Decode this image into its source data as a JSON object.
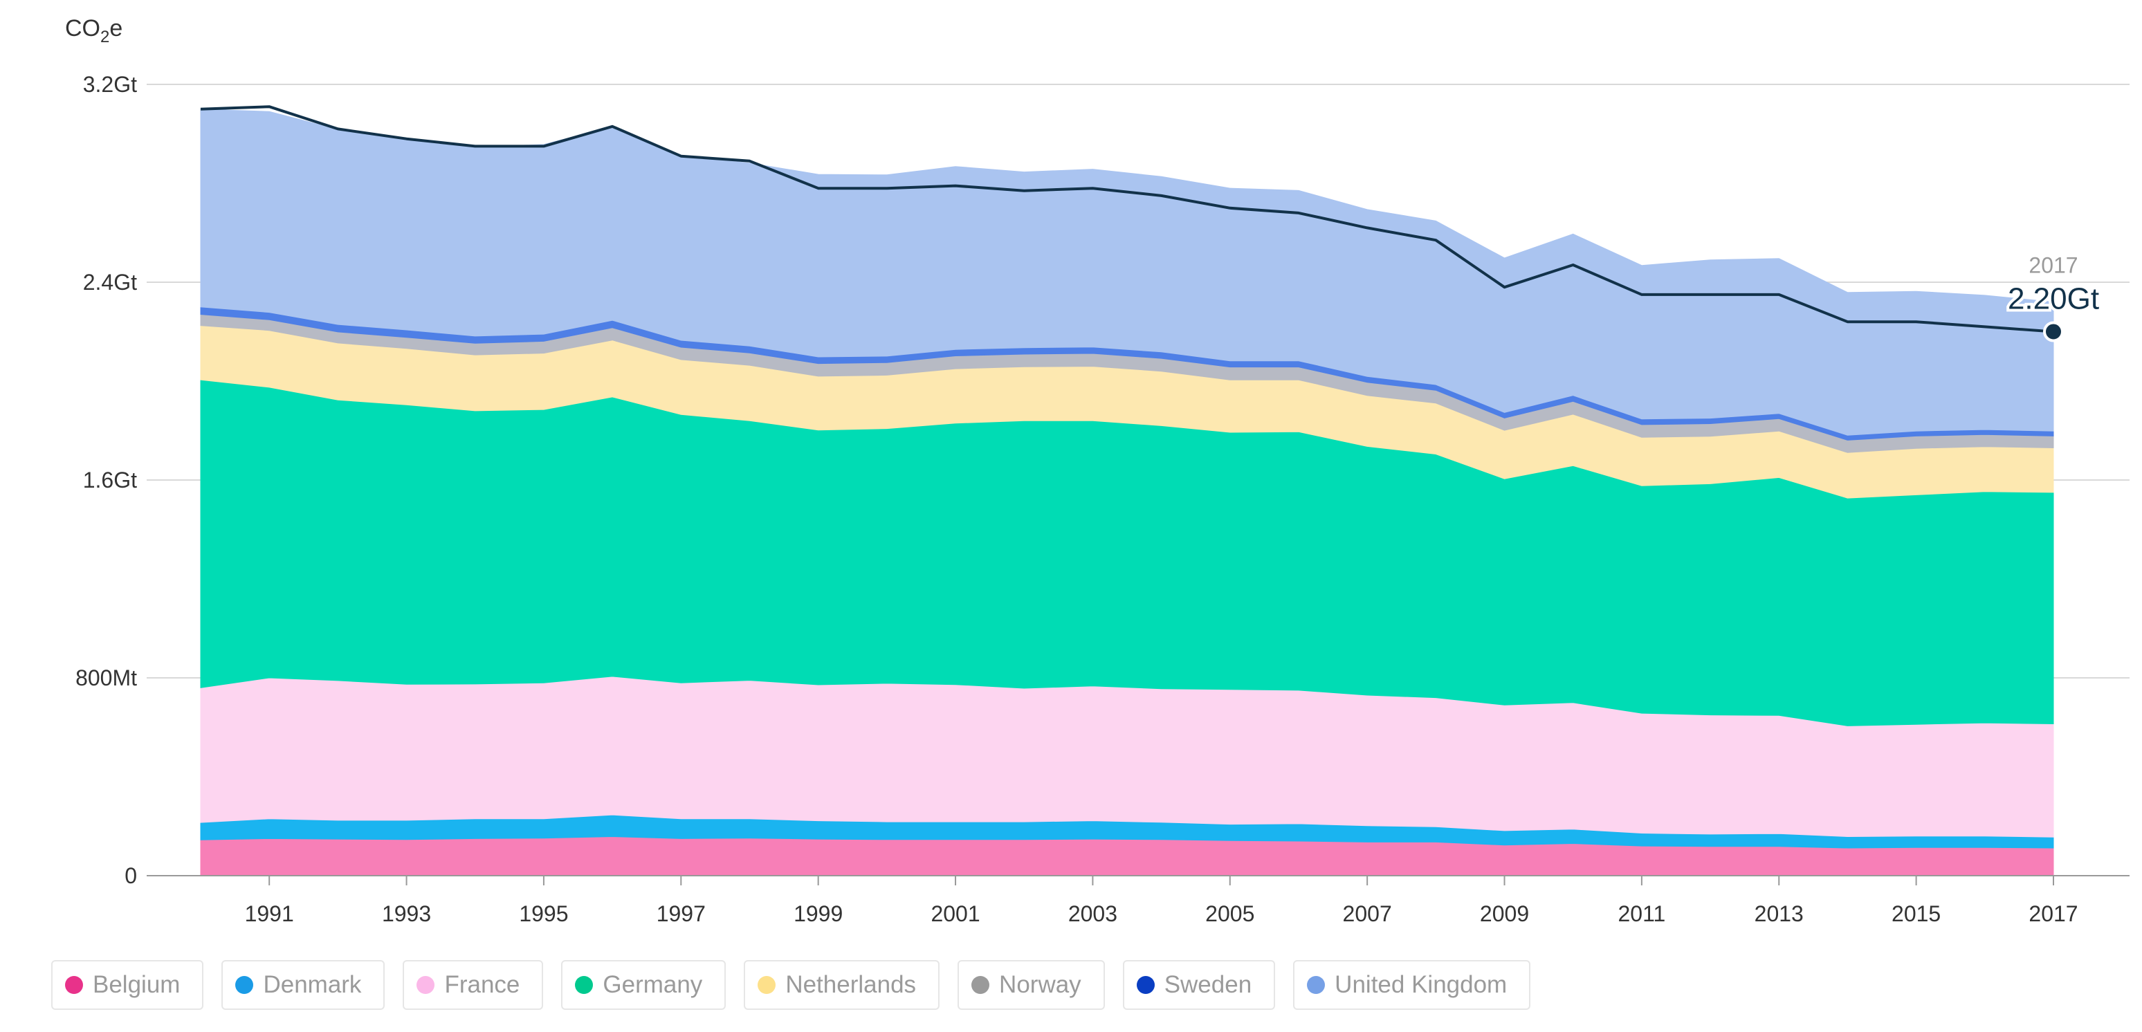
{
  "chart_data": {
    "type": "area",
    "stacked": true,
    "ylabel": "CO₂e",
    "ylabel_parts": {
      "prefix": "CO",
      "subscript": "2",
      "suffix": "e"
    },
    "ylim": [
      0,
      3.2
    ],
    "y_ticks": [
      {
        "value": 0,
        "label": "0"
      },
      {
        "value": 0.8,
        "label": "800Mt"
      },
      {
        "value": 1.6,
        "label": "1.6Gt"
      },
      {
        "value": 2.4,
        "label": "2.4Gt"
      },
      {
        "value": 3.2,
        "label": "3.2Gt"
      }
    ],
    "x": [
      1990,
      1991,
      1992,
      1993,
      1994,
      1995,
      1996,
      1997,
      1998,
      1999,
      2000,
      2001,
      2002,
      2003,
      2004,
      2005,
      2006,
      2007,
      2008,
      2009,
      2010,
      2011,
      2012,
      2013,
      2014,
      2015,
      2016,
      2017
    ],
    "x_ticks": [
      "1991",
      "1993",
      "1995",
      "1997",
      "1999",
      "2001",
      "2003",
      "2005",
      "2007",
      "2009",
      "2011",
      "2013",
      "2015",
      "2017"
    ],
    "x_tick_values": [
      1991,
      1993,
      1995,
      1997,
      1999,
      2001,
      2003,
      2005,
      2007,
      2009,
      2011,
      2013,
      2015,
      2017
    ],
    "series": [
      {
        "name": "Belgium",
        "color": "#f77fb7",
        "values": [
          0.145,
          0.15,
          0.148,
          0.146,
          0.15,
          0.152,
          0.158,
          0.15,
          0.152,
          0.148,
          0.146,
          0.146,
          0.146,
          0.148,
          0.146,
          0.142,
          0.14,
          0.136,
          0.136,
          0.124,
          0.13,
          0.12,
          0.118,
          0.118,
          0.112,
          0.114,
          0.114,
          0.112
        ]
      },
      {
        "name": "Denmark",
        "color": "#1ab4f0",
        "values": [
          0.07,
          0.08,
          0.076,
          0.078,
          0.08,
          0.078,
          0.088,
          0.08,
          0.078,
          0.074,
          0.072,
          0.072,
          0.072,
          0.074,
          0.07,
          0.066,
          0.07,
          0.066,
          0.062,
          0.058,
          0.058,
          0.052,
          0.05,
          0.052,
          0.046,
          0.046,
          0.046,
          0.044
        ]
      },
      {
        "name": "France",
        "color": "#fdd5f0",
        "values": [
          0.545,
          0.57,
          0.565,
          0.55,
          0.545,
          0.55,
          0.56,
          0.55,
          0.56,
          0.55,
          0.56,
          0.555,
          0.54,
          0.545,
          0.54,
          0.545,
          0.54,
          0.528,
          0.522,
          0.508,
          0.512,
          0.485,
          0.482,
          0.478,
          0.448,
          0.452,
          0.458,
          0.458
        ]
      },
      {
        "name": "Germany",
        "color": "#00dcb4",
        "values": [
          1.245,
          1.175,
          1.135,
          1.13,
          1.105,
          1.105,
          1.13,
          1.085,
          1.05,
          1.03,
          1.03,
          1.057,
          1.082,
          1.073,
          1.064,
          1.04,
          1.045,
          1.006,
          0.985,
          0.915,
          0.958,
          0.92,
          0.935,
          0.962,
          0.921,
          0.928,
          0.935,
          0.936
        ]
      },
      {
        "name": "Netherlands",
        "color": "#fde8b0",
        "values": [
          0.22,
          0.23,
          0.23,
          0.228,
          0.226,
          0.228,
          0.23,
          0.222,
          0.224,
          0.218,
          0.216,
          0.22,
          0.218,
          0.22,
          0.22,
          0.212,
          0.21,
          0.206,
          0.206,
          0.196,
          0.208,
          0.196,
          0.192,
          0.188,
          0.184,
          0.188,
          0.182,
          0.18
        ]
      },
      {
        "name": "Norway",
        "color": "#b7bac4",
        "values": [
          0.045,
          0.043,
          0.045,
          0.045,
          0.047,
          0.048,
          0.05,
          0.05,
          0.05,
          0.051,
          0.051,
          0.052,
          0.051,
          0.052,
          0.052,
          0.052,
          0.052,
          0.053,
          0.052,
          0.05,
          0.052,
          0.051,
          0.051,
          0.05,
          0.05,
          0.05,
          0.049,
          0.048
        ]
      },
      {
        "name": "Sweden",
        "color": "#4e7fe6",
        "values": [
          0.03,
          0.03,
          0.03,
          0.03,
          0.029,
          0.029,
          0.03,
          0.028,
          0.028,
          0.027,
          0.026,
          0.026,
          0.026,
          0.026,
          0.026,
          0.025,
          0.025,
          0.024,
          0.023,
          0.022,
          0.024,
          0.023,
          0.022,
          0.021,
          0.02,
          0.02,
          0.02,
          0.02
        ]
      },
      {
        "name": "United Kingdom",
        "color": "#aac4f0",
        "values": [
          0.8,
          0.812,
          0.789,
          0.77,
          0.764,
          0.767,
          0.783,
          0.745,
          0.74,
          0.738,
          0.733,
          0.74,
          0.711,
          0.719,
          0.709,
          0.698,
          0.689,
          0.675,
          0.662,
          0.625,
          0.653,
          0.621,
          0.64,
          0.627,
          0.578,
          0.565,
          0.543,
          0.522
        ]
      }
    ],
    "total_line": {
      "color": "#12324a",
      "values": [
        3.1,
        3.11,
        3.02,
        2.98,
        2.95,
        2.95,
        3.03,
        2.91,
        2.89,
        2.78,
        2.78,
        2.79,
        2.77,
        2.78,
        2.75,
        2.7,
        2.68,
        2.62,
        2.57,
        2.38,
        2.47,
        2.35,
        2.35,
        2.35,
        2.24,
        2.24,
        2.22,
        2.2
      ]
    },
    "annotation": {
      "year": "2017",
      "value_label": "2.20Gt",
      "x": 2017,
      "y": 2.2
    }
  },
  "legend": {
    "items": [
      {
        "label": "Belgium",
        "color": "#e8328a"
      },
      {
        "label": "Denmark",
        "color": "#1a9be6"
      },
      {
        "label": "France",
        "color": "#fbb8e8"
      },
      {
        "label": "Germany",
        "color": "#00c98e"
      },
      {
        "label": "Netherlands",
        "color": "#fde08a"
      },
      {
        "label": "Norway",
        "color": "#9a9a9a"
      },
      {
        "label": "Sweden",
        "color": "#0a3ec2"
      },
      {
        "label": "United Kingdom",
        "color": "#76a0e6"
      }
    ]
  }
}
